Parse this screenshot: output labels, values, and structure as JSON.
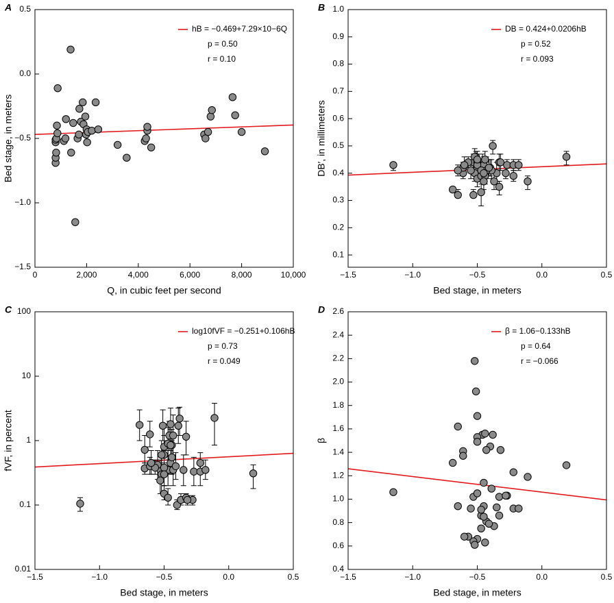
{
  "chart_data": [
    {
      "type": "scatter",
      "panel_label": "A",
      "x_label": "Q, in cubic feet per second",
      "y_label": "Bed stage, in meters",
      "xlim": [
        0,
        10000
      ],
      "ylim": [
        -1.5,
        0.5
      ],
      "xticks": [
        0,
        {
          "value": 2000,
          "label": "2,000"
        },
        {
          "value": 4000,
          "label": "4,000"
        },
        {
          "value": 6000,
          "label": "6,000"
        },
        {
          "value": 8000,
          "label": "8,000"
        },
        {
          "value": 10000,
          "label": "10,000"
        }
      ],
      "yticks": [
        {
          "value": -1.5,
          "label": "−1.5"
        },
        {
          "value": -1,
          "label": "−1.0"
        },
        {
          "value": -0.5,
          "label": "−0.5"
        },
        {
          "value": 0,
          "label": "0.0"
        },
        0.5
      ],
      "legend": "upper right",
      "fit": {
        "name": "hB = −0.469+7.29×10−6Q",
        "color": "#e3191c",
        "x": [
          0,
          10000
        ],
        "y": [
          -0.469,
          -0.396
        ]
      },
      "annotations": [
        "p = 0.50",
        "r = 0.10"
      ],
      "color": "#8a8a8a",
      "x": [
        800,
        800,
        820,
        800,
        800,
        830,
        870,
        850,
        880,
        1120,
        1180,
        1200,
        1380,
        1400,
        1480,
        1560,
        1650,
        1700,
        1720,
        1780,
        1850,
        1880,
        1950,
        1980,
        2000,
        2020,
        2050,
        2200,
        2350,
        2450,
        3200,
        3550,
        4250,
        4300,
        4350,
        4350,
        4500,
        6550,
        6600,
        6700,
        6800,
        6850,
        7650,
        7750,
        8000,
        8900
      ],
      "values": [
        -0.69,
        -0.65,
        -0.61,
        -0.53,
        -0.51,
        -0.5,
        -0.46,
        -0.4,
        -0.11,
        -0.52,
        -0.5,
        -0.35,
        0.19,
        -0.61,
        -0.38,
        -1.15,
        -0.5,
        -0.47,
        -0.27,
        -0.37,
        -0.22,
        -0.39,
        -0.33,
        -0.47,
        -0.43,
        -0.53,
        -0.45,
        -0.44,
        -0.22,
        -0.43,
        -0.55,
        -0.65,
        -0.52,
        -0.5,
        -0.44,
        -0.41,
        -0.57,
        -0.47,
        -0.5,
        -0.45,
        -0.33,
        -0.28,
        -0.18,
        -0.32,
        -0.45,
        -0.6
      ]
    },
    {
      "type": "scatter",
      "panel_label": "B",
      "x_label": "Bed stage, in meters",
      "y_label": "DB′, in millimeters",
      "xlim": [
        -1.5,
        0.5
      ],
      "ylim": [
        0.055,
        1.0
      ],
      "xticks": [
        {
          "value": -1.5,
          "label": "−1.5"
        },
        {
          "value": -1,
          "label": "−1.0"
        },
        {
          "value": -0.5,
          "label": "−0.5"
        },
        {
          "value": 0,
          "label": "0.0"
        },
        0.5
      ],
      "yticks": [
        0.1,
        0.2,
        0.3,
        0.4,
        0.5,
        0.6,
        0.7,
        0.8,
        0.9,
        {
          "value": 1,
          "label": "1.0"
        }
      ],
      "legend": "upper right",
      "fit": {
        "name": "DB = 0.424+0.0206hB",
        "color": "#e3191c",
        "x": [
          -1.5,
          0.5
        ],
        "y": [
          0.393,
          0.434
        ]
      },
      "annotations": [
        "p = 0.52",
        "r = 0.093"
      ],
      "color": "#8a8a8a",
      "x": [
        -0.69,
        -0.65,
        -0.61,
        -0.53,
        -0.51,
        -0.5,
        -0.46,
        -0.4,
        -0.11,
        -0.52,
        -0.5,
        -0.35,
        0.19,
        -0.61,
        -0.38,
        -1.15,
        -0.5,
        -0.47,
        -0.27,
        -0.37,
        -0.22,
        -0.39,
        -0.33,
        -0.47,
        -0.43,
        -0.53,
        -0.45,
        -0.44,
        -0.22,
        -0.43,
        -0.55,
        -0.65,
        -0.52,
        -0.5,
        -0.44,
        -0.41,
        -0.57,
        -0.47,
        -0.5,
        -0.45,
        -0.33,
        -0.28,
        -0.18,
        -0.32,
        -0.45,
        -0.6
      ],
      "values": [
        0.34,
        0.32,
        0.4,
        0.44,
        0.46,
        0.42,
        0.44,
        0.42,
        0.37,
        0.4,
        0.38,
        0.4,
        0.46,
        0.42,
        0.5,
        0.43,
        0.44,
        0.39,
        0.43,
        0.37,
        0.43,
        0.41,
        0.44,
        0.33,
        0.42,
        0.32,
        0.43,
        0.45,
        0.39,
        0.41,
        0.41,
        0.41,
        0.46,
        0.43,
        0.39,
        0.42,
        0.44,
        0.41,
        0.45,
        0.37,
        0.35,
        0.4,
        0.43,
        0.44,
        0.4,
        0.43
      ],
      "lower": [
        0.33,
        0.31,
        0.38,
        0.42,
        0.44,
        0.4,
        0.41,
        0.39,
        0.34,
        0.37,
        0.35,
        0.37,
        0.43,
        0.4,
        0.47,
        0.41,
        0.41,
        0.36,
        0.4,
        0.34,
        0.41,
        0.38,
        0.41,
        0.28,
        0.39,
        0.31,
        0.4,
        0.42,
        0.37,
        0.38,
        0.38,
        0.39,
        0.43,
        0.4,
        0.36,
        0.39,
        0.42,
        0.38,
        0.42,
        0.34,
        0.32,
        0.38,
        0.41,
        0.41,
        0.37,
        0.4
      ],
      "upper": [
        0.35,
        0.34,
        0.42,
        0.47,
        0.48,
        0.45,
        0.47,
        0.45,
        0.39,
        0.43,
        0.41,
        0.44,
        0.48,
        0.44,
        0.52,
        0.44,
        0.47,
        0.42,
        0.45,
        0.4,
        0.45,
        0.45,
        0.47,
        0.38,
        0.46,
        0.34,
        0.46,
        0.48,
        0.41,
        0.44,
        0.44,
        0.43,
        0.49,
        0.46,
        0.42,
        0.45,
        0.46,
        0.44,
        0.48,
        0.4,
        0.37,
        0.43,
        0.45,
        0.47,
        0.43,
        0.46
      ]
    },
    {
      "type": "scatter",
      "panel_label": "C",
      "x_label": "Bed stage, in meters",
      "y_label": "fVF, in percent",
      "xlim": [
        -1.5,
        0.5
      ],
      "ylim": [
        0.01,
        100
      ],
      "log_y": true,
      "xticks": [
        {
          "value": -1.5,
          "label": "−1.5"
        },
        {
          "value": -1,
          "label": "−1.0"
        },
        {
          "value": -0.5,
          "label": "−0.5"
        },
        {
          "value": 0,
          "label": "0.0"
        },
        0.5
      ],
      "yticks": [
        0.01,
        0.1,
        1,
        10,
        100
      ],
      "legend": "upper right",
      "fit": {
        "name": "log10fVF = −0.251+0.106hB",
        "color": "#e3191c",
        "x": [
          -1.5,
          0.5
        ],
        "y": [
          0.389,
          0.634
        ]
      },
      "annotations": [
        "p = 0.73",
        "r = 0.049"
      ],
      "color": "#8a8a8a",
      "x": [
        -0.69,
        -0.65,
        -0.61,
        -0.53,
        -0.51,
        -0.5,
        -0.46,
        -0.4,
        -0.11,
        -0.52,
        -0.5,
        -0.35,
        0.19,
        -0.61,
        -0.38,
        -1.15,
        -0.5,
        -0.47,
        -0.27,
        -0.37,
        -0.22,
        -0.39,
        -0.33,
        -0.47,
        -0.43,
        -0.53,
        -0.45,
        -0.44,
        -0.22,
        -0.43,
        -0.55,
        -0.65,
        -0.52,
        -0.5,
        -0.44,
        -0.41,
        -0.57,
        -0.47,
        -0.5,
        -0.45,
        -0.33,
        -0.28,
        -0.18,
        -0.32,
        -0.45,
        -0.6
      ],
      "values": [
        1.75,
        0.37,
        1.25,
        0.35,
        1.7,
        0.6,
        1.2,
        0.1,
        2.25,
        0.3,
        0.15,
        0.35,
        0.31,
        0.4,
        2.2,
        0.105,
        0.8,
        0.13,
        0.33,
        0.12,
        0.33,
        1.7,
        1.15,
        0.35,
        1.2,
        0.24,
        0.45,
        0.55,
        0.45,
        0.35,
        0.42,
        0.72,
        0.6,
        0.38,
        0.85,
        0.4,
        0.38,
        0.9,
        0.3,
        1.8,
        0.13,
        0.12,
        0.35,
        0.12,
        0.85,
        0.45
      ],
      "lower": [
        1,
        0.3,
        0.8,
        0.25,
        1,
        0.3,
        0.7,
        0.085,
        0.85,
        0.15,
        0.12,
        0.2,
        0.18,
        0.3,
        1.2,
        0.08,
        0.4,
        0.1,
        0.2,
        0.1,
        0.2,
        0.9,
        0.6,
        0.2,
        0.5,
        0.15,
        0.3,
        0.3,
        0.3,
        0.2,
        0.25,
        0.45,
        0.35,
        0.2,
        0.5,
        0.25,
        0.3,
        0.5,
        0.2,
        1,
        0.11,
        0.1,
        0.25,
        0.1,
        0.5,
        0.3
      ],
      "upper": [
        3,
        0.45,
        2,
        0.5,
        3,
        1.2,
        2,
        0.12,
        3.8,
        0.6,
        0.2,
        0.6,
        0.42,
        0.55,
        3.3,
        0.13,
        1.8,
        0.18,
        0.55,
        0.15,
        0.5,
        3.2,
        2,
        0.7,
        2.5,
        0.4,
        0.7,
        1,
        0.65,
        0.6,
        0.7,
        1.2,
        1,
        0.7,
        1.5,
        0.65,
        0.5,
        1.6,
        0.45,
        3.2,
        0.15,
        0.14,
        0.5,
        0.14,
        1.5,
        0.7
      ]
    },
    {
      "type": "scatter",
      "panel_label": "D",
      "x_label": "Bed stage, in meters",
      "y_label": "β",
      "xlim": [
        -1.5,
        0.5
      ],
      "ylim": [
        0.4,
        2.6
      ],
      "xticks": [
        {
          "value": -1.5,
          "label": "−1.5"
        },
        {
          "value": -1,
          "label": "−1.0"
        },
        {
          "value": -0.5,
          "label": "−0.5"
        },
        {
          "value": 0,
          "label": "0.0"
        },
        0.5
      ],
      "yticks": [
        0.4,
        0.6,
        0.8,
        {
          "value": 1,
          "label": "1.0"
        },
        1.2,
        1.4,
        1.6,
        1.8,
        {
          "value": 2,
          "label": "2.0"
        },
        2.2,
        2.4,
        2.6
      ],
      "legend": "upper right",
      "fit": {
        "name": "β = 1.06−0.133hB",
        "color": "#e3191c",
        "x": [
          -1.5,
          0.5
        ],
        "y": [
          1.2595,
          0.9935
        ]
      },
      "annotations": [
        "p = 0.64",
        "r = −0.066"
      ],
      "color": "#8a8a8a",
      "x": [
        -0.69,
        -0.65,
        -0.61,
        -0.53,
        -0.51,
        -0.5,
        -0.46,
        -0.4,
        -0.11,
        -0.52,
        -0.5,
        -0.35,
        0.19,
        -0.61,
        -0.38,
        -1.15,
        -0.5,
        -0.47,
        -0.27,
        -0.37,
        -0.22,
        -0.39,
        -0.33,
        -0.47,
        -0.43,
        -0.53,
        -0.45,
        -0.44,
        -0.22,
        -0.43,
        -0.55,
        -0.65,
        -0.52,
        -0.5,
        -0.44,
        -0.41,
        -0.57,
        -0.47,
        -0.5,
        -0.45,
        -0.33,
        -0.28,
        -0.18,
        -0.32,
        -0.45,
        -0.6
      ],
      "values": [
        1.31,
        0.94,
        1.41,
        1.02,
        1.92,
        1.71,
        1.55,
        1.45,
        1.19,
        2.18,
        0.66,
        0.93,
        1.29,
        1.37,
        1.55,
        1.06,
        1.53,
        0.86,
        1.03,
        0.77,
        1.23,
        1.09,
        1.02,
        0.75,
        1.42,
        0.64,
        0.94,
        1.56,
        0.92,
        0.81,
        0.92,
        1.62,
        0.61,
        1.05,
        0.63,
        0.79,
        0.68,
        0.91,
        1.49,
        1.14,
        0.86,
        1.03,
        0.92,
        1.42,
        0.85,
        0.68
      ]
    }
  ]
}
